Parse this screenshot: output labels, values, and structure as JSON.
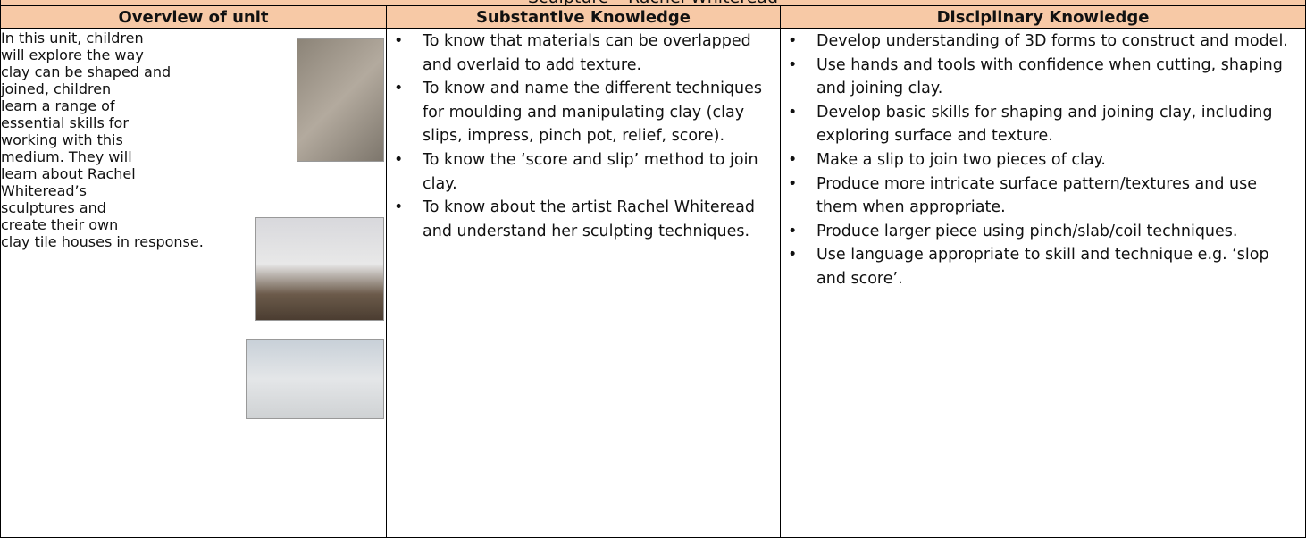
{
  "header": {
    "title": "Sculpture – Rachel Whiteread"
  },
  "table": {
    "columns": [
      "Overview of unit",
      "Substantive Knowledge",
      "Disciplinary Knowledge"
    ],
    "overview_lines": [
      "In this unit, children",
      "will explore the way",
      "clay can be shaped and",
      "joined, children",
      "learn a range of",
      "essential skills for",
      "working with this",
      "medium. They will",
      "learn about Rachel",
      "Whiteread’s",
      "sculptures and",
      "create their own",
      "clay tile houses in response."
    ],
    "substantive": [
      "To know that materials can be overlapped and overlaid to add texture.",
      "To know and name the different techniques for moulding and manipulating clay (clay slips, impress, pinch pot, relief, score).",
      "To know the ‘score and slip’ method to join clay.",
      "To know about the artist Rachel Whiteread and understand her sculpting techniques."
    ],
    "disciplinary": [
      "Develop understanding of 3D forms to construct and model.",
      "Use hands and tools with confidence when cutting, shaping and joining clay.",
      "Develop basic skills for shaping and joining clay, including exploring surface and texture.",
      "Make a slip to join two pieces of clay.",
      "Produce more intricate surface pattern/textures and use them when appropriate.",
      "Produce larger piece using pinch/slab/coil techniques.",
      "Use language appropriate to skill and technique e.g. ‘slop and score’."
    ]
  }
}
